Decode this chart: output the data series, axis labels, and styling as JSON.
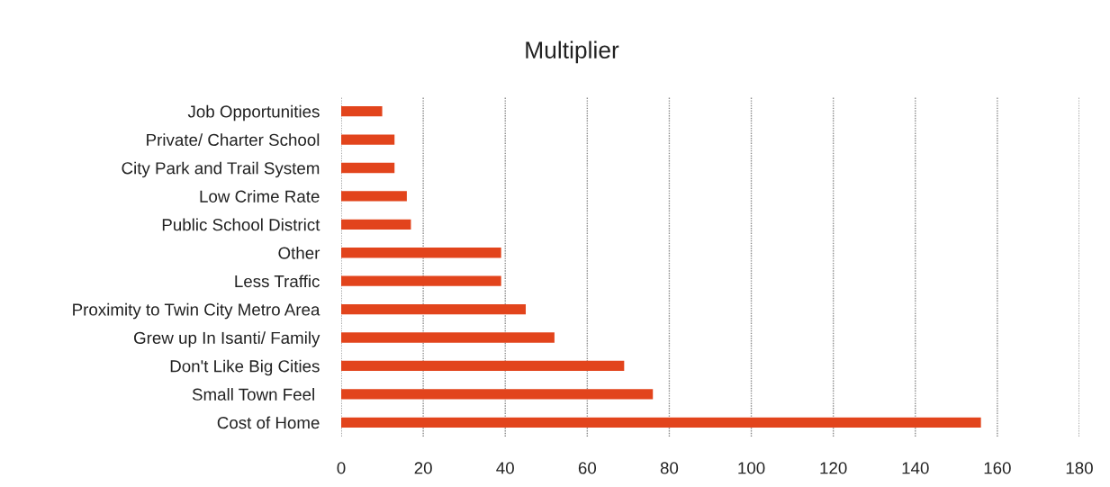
{
  "chart_data": {
    "type": "bar",
    "orientation": "horizontal",
    "title": "Multiplier",
    "categories": [
      "Job Opportunities",
      "Private/ Charter School",
      "City Park and Trail System",
      "Low Crime Rate",
      "Public School District",
      "Other",
      "Less Traffic",
      "Proximity to Twin City Metro Area",
      "Grew up In Isanti/ Family",
      "Don't Like Big Cities",
      "Small Town Feel ",
      "Cost of Home"
    ],
    "values": [
      10,
      13,
      13,
      16,
      17,
      39,
      39,
      45,
      52,
      69,
      76,
      156
    ],
    "color": "#e2441c",
    "xlim": [
      0,
      180
    ],
    "xticks": [
      0,
      20,
      40,
      60,
      80,
      100,
      120,
      140,
      160,
      180
    ],
    "grid": "x"
  }
}
